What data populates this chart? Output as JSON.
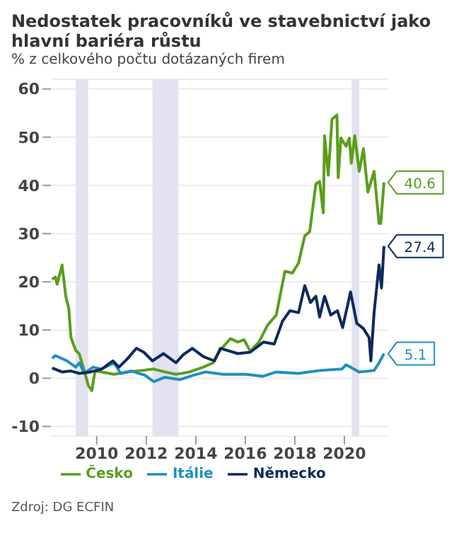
{
  "chart_data": {
    "type": "line",
    "title": "Nedostatek pracovníků ve stavebnictví jako hlavní bariéra růstu",
    "subtitle": "% z celkového počtu dotázaných firem",
    "xlim": [
      2008.15,
      2021.8
    ],
    "xticks": [
      2010,
      2012,
      2014,
      2016,
      2018,
      2020
    ],
    "ylim": [
      -12,
      62
    ],
    "yticks": [
      -10,
      0,
      10,
      20,
      30,
      40,
      50,
      60
    ],
    "grid": "y",
    "legend": "bottom",
    "series": [
      {
        "name": "Česko",
        "color": "#5a9e1e",
        "x": [
          2008.2,
          2008.33,
          2008.4,
          2008.6,
          2008.75,
          2008.87,
          2008.96,
          2009.15,
          2009.3,
          2009.5,
          2009.66,
          2009.8,
          2009.93,
          2010.2,
          2010.7,
          2011.25,
          2011.8,
          2012.3,
          2012.75,
          2013.2,
          2013.75,
          2014.3,
          2014.7,
          2014.98,
          2015.4,
          2015.7,
          2015.95,
          2016.2,
          2016.55,
          2016.9,
          2017.25,
          2017.6,
          2017.9,
          2018.15,
          2018.4,
          2018.6,
          2018.85,
          2019.0,
          2019.15,
          2019.2,
          2019.35,
          2019.5,
          2019.7,
          2019.75,
          2019.86,
          2020.07,
          2020.2,
          2020.28,
          2020.42,
          2020.6,
          2020.77,
          2020.95,
          2021.2,
          2021.4,
          2021.47,
          2021.6
        ],
        "values": [
          20.5,
          21,
          19.5,
          23.5,
          17,
          14.5,
          8.4,
          5.8,
          5,
          1.5,
          -1.5,
          -2.6,
          1.5,
          1.3,
          0.8,
          1.3,
          1.6,
          1.9,
          1.3,
          0.8,
          1.3,
          2.3,
          3.2,
          5.8,
          8.2,
          7.5,
          8,
          5.6,
          7.5,
          11,
          13.1,
          22.2,
          21.8,
          23.9,
          29.5,
          30.4,
          40.3,
          40.8,
          34.3,
          50.3,
          42.1,
          53.7,
          54.6,
          41.6,
          49.8,
          48.1,
          49.8,
          44.6,
          50.3,
          42.9,
          47.6,
          38.6,
          42.9,
          32.1,
          32.1,
          40.6
        ],
        "value_labels": [
          null,
          null,
          null,
          null,
          null,
          null,
          null,
          null,
          null,
          null,
          null,
          null,
          null,
          null,
          null,
          null,
          null,
          null,
          null,
          null,
          null,
          null,
          null,
          null,
          null,
          null,
          null,
          null,
          null,
          null,
          null,
          null,
          null,
          null,
          null,
          null,
          null,
          null,
          null,
          null,
          null,
          null,
          null,
          null,
          null,
          null,
          null,
          null,
          null,
          null,
          null,
          null,
          null,
          null,
          null,
          "40.6"
        ]
      },
      {
        "name": "Itálie",
        "color": "#1f8fc0",
        "x": [
          2008.2,
          2008.33,
          2008.8,
          2009.15,
          2009.3,
          2009.5,
          2009.85,
          2010.2,
          2010.7,
          2010.97,
          2011.4,
          2011.95,
          2012.3,
          2012.75,
          2013.35,
          2013.9,
          2014.4,
          2015.1,
          2016.03,
          2016.7,
          2017.26,
          2018.14,
          2019.0,
          2019.9,
          2020.07,
          2020.6,
          2021.2,
          2021.4,
          2021.6
        ],
        "values": [
          4.1,
          4.7,
          3.6,
          2.3,
          3.2,
          1,
          2.3,
          1.9,
          3.2,
          1,
          1.5,
          0.6,
          -0.7,
          0.2,
          -0.3,
          0.6,
          1.3,
          0.8,
          0.8,
          0.4,
          1.3,
          1,
          1.6,
          1.9,
          2.8,
          1.3,
          1.6,
          3.2,
          5.1
        ],
        "value_labels": [
          null,
          null,
          null,
          null,
          null,
          null,
          null,
          null,
          null,
          null,
          null,
          null,
          null,
          null,
          null,
          null,
          null,
          null,
          null,
          null,
          null,
          null,
          null,
          null,
          null,
          null,
          null,
          null,
          "5.1"
        ]
      },
      {
        "name": "Německo",
        "color": "#0d2a5c",
        "x": [
          2008.2,
          2008.6,
          2008.96,
          2009.3,
          2009.75,
          2010.2,
          2010.65,
          2010.9,
          2011.25,
          2011.6,
          2011.9,
          2012.25,
          2012.7,
          2013.2,
          2013.5,
          2013.86,
          2014.3,
          2014.75,
          2015.0,
          2015.7,
          2016.2,
          2016.74,
          2017.17,
          2017.5,
          2017.8,
          2018.15,
          2018.4,
          2018.63,
          2018.85,
          2019.0,
          2019.2,
          2019.45,
          2019.72,
          2019.93,
          2020.25,
          2020.5,
          2020.77,
          2021.0,
          2021.07,
          2021.2,
          2021.4,
          2021.5,
          2021.6
        ],
        "values": [
          2.1,
          1.3,
          1.5,
          1,
          1.3,
          1.9,
          3.6,
          2.3,
          4.1,
          6.2,
          5.4,
          3.6,
          5.1,
          3.2,
          4.9,
          6.2,
          4.5,
          3.6,
          6.2,
          5.1,
          5.4,
          7.5,
          7.1,
          11.8,
          14,
          13.6,
          19.2,
          15.7,
          17,
          12.7,
          17,
          13.1,
          14,
          10.5,
          17.9,
          11.4,
          10.3,
          8.4,
          3.6,
          13.6,
          23.5,
          18.7,
          27.4
        ],
        "value_labels": [
          null,
          null,
          null,
          null,
          null,
          null,
          null,
          null,
          null,
          null,
          null,
          null,
          null,
          null,
          null,
          null,
          null,
          null,
          null,
          null,
          null,
          null,
          null,
          null,
          null,
          null,
          null,
          null,
          null,
          null,
          null,
          null,
          null,
          null,
          null,
          null,
          null,
          null,
          null,
          null,
          null,
          null,
          "27.4"
        ]
      }
    ],
    "bands": [
      {
        "axis": "x",
        "from": 2009.15,
        "to": 2009.65,
        "color": "#e2e2f0"
      },
      {
        "axis": "x",
        "from": 2012.25,
        "to": 2013.3,
        "color": "#e2e2f0"
      },
      {
        "axis": "x",
        "from": 2020.3,
        "to": 2020.6,
        "color": "#e2e2f0"
      }
    ],
    "annotations": [
      "Zdroj: DG ECFIN"
    ]
  }
}
